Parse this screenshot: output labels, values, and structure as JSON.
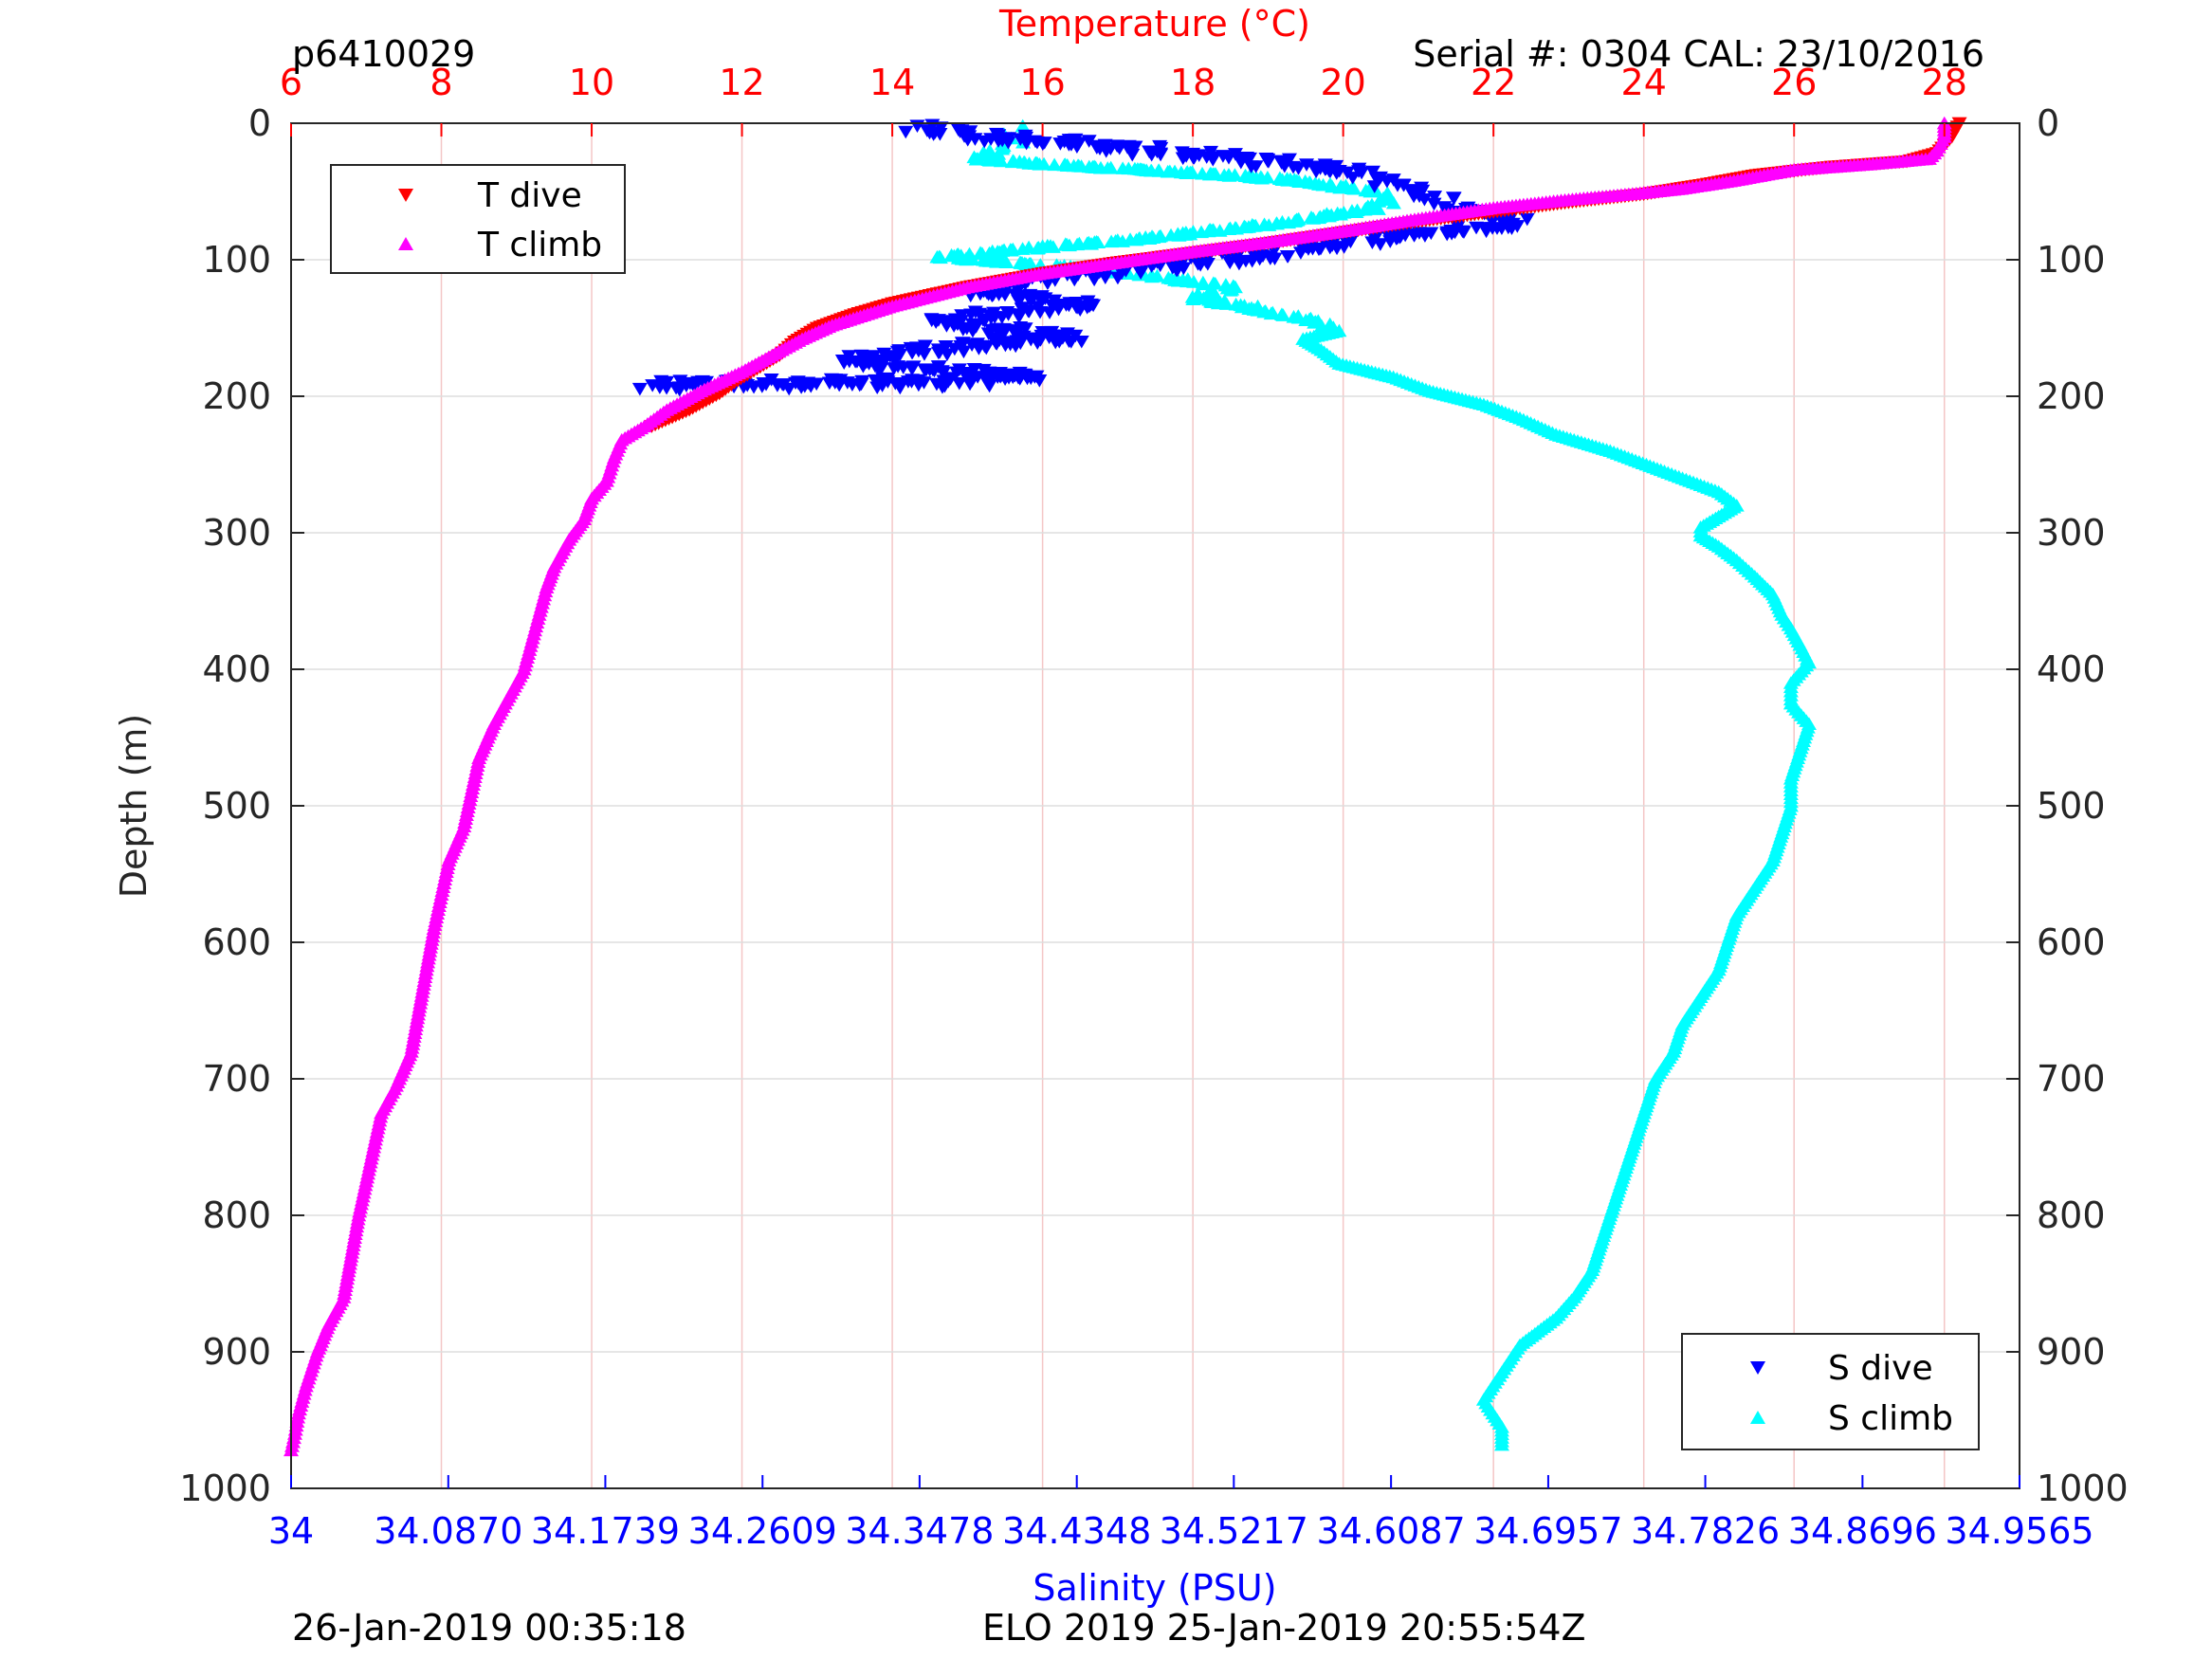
{
  "header": {
    "profile_id": "p6410029",
    "serial_info": "Serial #: 0304  CAL: 23/10/2016"
  },
  "footer": {
    "left_timestamp": "26-Jan-2019 00:35:18",
    "right_info": "ELO 2019 25-Jan-2019 20:55:54Z"
  },
  "colors": {
    "t_dive": "#ff0000",
    "t_climb": "#ff00ff",
    "s_dive": "#0000ff",
    "s_climb": "#00ffff",
    "temp_axis": "#ff0000",
    "sal_axis": "#0000ff",
    "grid_temp": "#f4c6c6",
    "grid_depth": "#dddddd"
  },
  "chart_data": {
    "type": "scatter",
    "temp_axis": {
      "label": "Temperature (°C)",
      "range": [
        6,
        29
      ],
      "ticks": [
        "6",
        "8",
        "10",
        "12",
        "14",
        "16",
        "18",
        "20",
        "22",
        "24",
        "26",
        "28"
      ],
      "tick_values": [
        6,
        8,
        10,
        12,
        14,
        16,
        18,
        20,
        22,
        24,
        26,
        28
      ]
    },
    "sal_axis": {
      "label": "Salinity (PSU)",
      "range": [
        34,
        34.9565
      ],
      "ticks": [
        "34",
        "34.0870",
        "34.1739",
        "34.2609",
        "34.3478",
        "34.4348",
        "34.5217",
        "34.6087",
        "34.6957",
        "34.7826",
        "34.8696",
        "34.9565"
      ],
      "tick_values": [
        34,
        34.087,
        34.1739,
        34.2609,
        34.3478,
        34.4348,
        34.5217,
        34.6087,
        34.6957,
        34.7826,
        34.8696,
        34.9565
      ]
    },
    "depth_axis": {
      "label": "Depth (m)",
      "range": [
        0,
        1000
      ],
      "ticks": [
        "0",
        "100",
        "200",
        "300",
        "400",
        "500",
        "600",
        "700",
        "800",
        "900",
        "1000"
      ],
      "tick_values": [
        0,
        100,
        200,
        300,
        400,
        500,
        600,
        700,
        800,
        900,
        1000
      ]
    },
    "legends": [
      {
        "placement": "top-left",
        "entries": [
          {
            "name": "T dive",
            "series": "t_dive"
          },
          {
            "name": "T climb",
            "series": "t_climb"
          }
        ]
      },
      {
        "placement": "bottom-right",
        "entries": [
          {
            "name": "S dive",
            "series": "s_dive"
          },
          {
            "name": "S climb",
            "series": "s_climb"
          }
        ]
      }
    ],
    "series": [
      {
        "key": "t_dive",
        "name": "T dive",
        "axis": "temperature",
        "marker": "triangle-down",
        "points": [
          [
            28.2,
            0
          ],
          [
            28.1,
            10
          ],
          [
            27.9,
            22
          ],
          [
            27.5,
            28
          ],
          [
            26.5,
            32
          ],
          [
            25.5,
            38
          ],
          [
            24.8,
            45
          ],
          [
            24.0,
            52
          ],
          [
            23.0,
            58
          ],
          [
            22.0,
            65
          ],
          [
            21.0,
            72
          ],
          [
            20.0,
            80
          ],
          [
            19.0,
            88
          ],
          [
            18.0,
            95
          ],
          [
            17.0,
            102
          ],
          [
            16.0,
            110
          ],
          [
            15.0,
            120
          ],
          [
            14.0,
            132
          ],
          [
            13.5,
            140
          ],
          [
            13.0,
            150
          ],
          [
            12.7,
            160
          ],
          [
            12.5,
            170
          ],
          [
            12.2,
            180
          ],
          [
            11.9,
            190
          ],
          [
            11.7,
            198
          ],
          [
            11.3,
            210
          ],
          [
            10.8,
            222
          ]
        ]
      },
      {
        "key": "t_climb",
        "name": "T climb",
        "axis": "temperature",
        "marker": "triangle-up",
        "points": [
          [
            28.0,
            0
          ],
          [
            28.0,
            10
          ],
          [
            27.9,
            20
          ],
          [
            27.8,
            26
          ],
          [
            27.0,
            30
          ],
          [
            26.0,
            34
          ],
          [
            25.2,
            42
          ],
          [
            24.5,
            48
          ],
          [
            23.8,
            52
          ],
          [
            23.0,
            56
          ],
          [
            22.0,
            62
          ],
          [
            21.0,
            70
          ],
          [
            20.0,
            79
          ],
          [
            19.0,
            87
          ],
          [
            18.0,
            94
          ],
          [
            17.0,
            102
          ],
          [
            16.0,
            110
          ],
          [
            15.0,
            120
          ],
          [
            14.0,
            134
          ],
          [
            13.2,
            148
          ],
          [
            12.8,
            158
          ],
          [
            12.4,
            170
          ],
          [
            12.0,
            182
          ],
          [
            11.5,
            195
          ],
          [
            11.0,
            210
          ],
          [
            10.7,
            222
          ],
          [
            10.4,
            232
          ],
          [
            10.3,
            245
          ],
          [
            10.2,
            262
          ],
          [
            10.0,
            275
          ],
          [
            9.9,
            290
          ],
          [
            9.7,
            305
          ],
          [
            9.5,
            325
          ],
          [
            9.4,
            340
          ],
          [
            9.3,
            360
          ],
          [
            9.2,
            380
          ],
          [
            9.1,
            400
          ],
          [
            8.9,
            420
          ],
          [
            8.7,
            440
          ],
          [
            8.5,
            465
          ],
          [
            8.4,
            490
          ],
          [
            8.3,
            515
          ],
          [
            8.1,
            540
          ],
          [
            8.0,
            565
          ],
          [
            7.9,
            590
          ],
          [
            7.8,
            620
          ],
          [
            7.7,
            650
          ],
          [
            7.6,
            680
          ],
          [
            7.4,
            705
          ],
          [
            7.2,
            725
          ],
          [
            7.1,
            750
          ],
          [
            7.0,
            775
          ],
          [
            6.9,
            800
          ],
          [
            6.8,
            830
          ],
          [
            6.7,
            860
          ],
          [
            6.5,
            880
          ],
          [
            6.35,
            900
          ],
          [
            6.2,
            925
          ],
          [
            6.1,
            945
          ],
          [
            6.05,
            960
          ],
          [
            6.0,
            972
          ]
        ]
      },
      {
        "key": "s_dive",
        "name": "S dive",
        "axis": "salinity",
        "marker": "triangle-down",
        "points": [
          [
            34.348,
            4
          ],
          [
            34.37,
            8
          ],
          [
            34.4,
            12
          ],
          [
            34.43,
            14
          ],
          [
            34.46,
            18
          ],
          [
            34.49,
            22
          ],
          [
            34.52,
            26
          ],
          [
            34.55,
            30
          ],
          [
            34.58,
            34
          ],
          [
            34.6,
            40
          ],
          [
            34.61,
            46
          ],
          [
            34.62,
            52
          ],
          [
            34.635,
            56
          ],
          [
            34.64,
            62
          ],
          [
            34.66,
            66
          ],
          [
            34.68,
            70
          ],
          [
            34.67,
            75
          ],
          [
            34.63,
            80
          ],
          [
            34.58,
            88
          ],
          [
            34.54,
            96
          ],
          [
            34.5,
            102
          ],
          [
            34.45,
            110
          ],
          [
            34.4,
            118
          ],
          [
            34.38,
            124
          ],
          [
            34.41,
            128
          ],
          [
            34.44,
            134
          ],
          [
            34.39,
            140
          ],
          [
            34.36,
            146
          ],
          [
            34.4,
            152
          ],
          [
            34.43,
            158
          ],
          [
            34.38,
            162
          ],
          [
            34.34,
            168
          ],
          [
            34.31,
            175
          ],
          [
            34.36,
            180
          ],
          [
            34.41,
            185
          ],
          [
            34.37,
            190
          ],
          [
            34.2,
            192
          ]
        ]
      },
      {
        "key": "s_climb",
        "name": "S climb",
        "axis": "salinity",
        "marker": "triangle-up",
        "points": [
          [
            34.4,
            2
          ],
          [
            34.4,
            8
          ],
          [
            34.4,
            14
          ],
          [
            34.39,
            20
          ],
          [
            34.38,
            26
          ],
          [
            34.42,
            30
          ],
          [
            34.47,
            34
          ],
          [
            34.52,
            38
          ],
          [
            34.56,
            42
          ],
          [
            34.58,
            46
          ],
          [
            34.6,
            50
          ],
          [
            34.61,
            56
          ],
          [
            34.6,
            62
          ],
          [
            34.57,
            68
          ],
          [
            34.54,
            74
          ],
          [
            34.5,
            80
          ],
          [
            34.46,
            86
          ],
          [
            34.42,
            90
          ],
          [
            34.39,
            94
          ],
          [
            34.36,
            98
          ],
          [
            34.4,
            102
          ],
          [
            34.44,
            106
          ],
          [
            34.48,
            112
          ],
          [
            34.52,
            120
          ],
          [
            34.5,
            128
          ],
          [
            34.53,
            134
          ],
          [
            34.55,
            140
          ],
          [
            34.57,
            146
          ],
          [
            34.58,
            152
          ],
          [
            34.56,
            158
          ],
          [
            34.57,
            166
          ],
          [
            34.58,
            176
          ],
          [
            34.61,
            186
          ],
          [
            34.63,
            196
          ],
          [
            34.66,
            206
          ],
          [
            34.68,
            216
          ],
          [
            34.7,
            228
          ],
          [
            34.73,
            240
          ],
          [
            34.75,
            250
          ],
          [
            34.77,
            260
          ],
          [
            34.79,
            270
          ],
          [
            34.8,
            280
          ],
          [
            34.79,
            288
          ],
          [
            34.78,
            296
          ],
          [
            34.78,
            302
          ],
          [
            34.79,
            310
          ],
          [
            34.8,
            320
          ],
          [
            34.81,
            332
          ],
          [
            34.82,
            345
          ],
          [
            34.825,
            360
          ],
          [
            34.83,
            370
          ],
          [
            34.835,
            382
          ],
          [
            34.84,
            395
          ],
          [
            34.83,
            410
          ],
          [
            34.83,
            425
          ],
          [
            34.84,
            440
          ],
          [
            34.835,
            460
          ],
          [
            34.83,
            480
          ],
          [
            34.83,
            500
          ],
          [
            34.825,
            520
          ],
          [
            34.82,
            540
          ],
          [
            34.81,
            560
          ],
          [
            34.8,
            580
          ],
          [
            34.795,
            600
          ],
          [
            34.79,
            620
          ],
          [
            34.78,
            640
          ],
          [
            34.77,
            660
          ],
          [
            34.765,
            680
          ],
          [
            34.755,
            700
          ],
          [
            34.75,
            720
          ],
          [
            34.745,
            740
          ],
          [
            34.74,
            760
          ],
          [
            34.735,
            780
          ],
          [
            34.73,
            800
          ],
          [
            34.725,
            820
          ],
          [
            34.72,
            840
          ],
          [
            34.71,
            860
          ],
          [
            34.7,
            875
          ],
          [
            34.69,
            885
          ],
          [
            34.68,
            895
          ],
          [
            34.675,
            905
          ],
          [
            34.67,
            915
          ],
          [
            34.665,
            925
          ],
          [
            34.66,
            935
          ],
          [
            34.665,
            945
          ],
          [
            34.67,
            955
          ],
          [
            34.67,
            968
          ]
        ]
      }
    ]
  }
}
